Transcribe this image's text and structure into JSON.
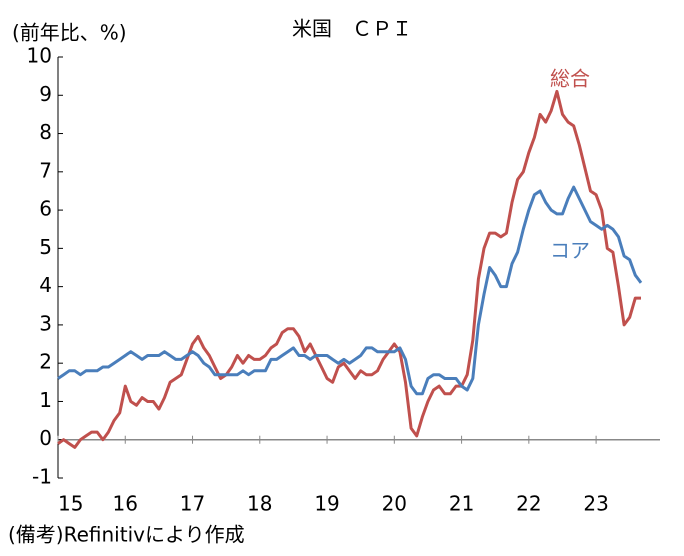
{
  "chart_data": {
    "type": "line",
    "title": "米国　ＣＰＩ",
    "y_label": "(前年比、%)",
    "note": "(備考)Refinitivにより作成",
    "x": [
      15,
      15.083,
      15.167,
      15.25,
      15.333,
      15.417,
      15.5,
      15.583,
      15.667,
      15.75,
      15.833,
      15.917,
      16,
      16.083,
      16.167,
      16.25,
      16.333,
      16.417,
      16.5,
      16.583,
      16.667,
      16.75,
      16.833,
      16.917,
      17,
      17.083,
      17.167,
      17.25,
      17.333,
      17.417,
      17.5,
      17.583,
      17.667,
      17.75,
      17.833,
      17.917,
      18,
      18.083,
      18.167,
      18.25,
      18.333,
      18.417,
      18.5,
      18.583,
      18.667,
      18.75,
      18.833,
      18.917,
      19,
      19.083,
      19.167,
      19.25,
      19.333,
      19.417,
      19.5,
      19.583,
      19.667,
      19.75,
      19.833,
      19.917,
      20,
      20.083,
      20.167,
      20.25,
      20.333,
      20.417,
      20.5,
      20.583,
      20.667,
      20.75,
      20.833,
      20.917,
      21,
      21.083,
      21.167,
      21.25,
      21.333,
      21.417,
      21.5,
      21.583,
      21.667,
      21.75,
      21.833,
      21.917,
      22,
      22.083,
      22.167,
      22.25,
      22.333,
      22.417,
      22.5,
      22.583,
      22.667,
      22.75,
      22.833,
      22.917,
      23,
      23.083,
      23.167,
      23.25,
      23.333,
      23.417,
      23.5,
      23.583,
      23.667
    ],
    "series": [
      {
        "name": "総合",
        "color": "#c0504d",
        "values": [
          -0.1,
          0.0,
          -0.1,
          -0.2,
          0.0,
          0.1,
          0.2,
          0.2,
          0.0,
          0.2,
          0.5,
          0.7,
          1.4,
          1.0,
          0.9,
          1.1,
          1.0,
          1.0,
          0.8,
          1.1,
          1.5,
          1.6,
          1.7,
          2.1,
          2.5,
          2.7,
          2.4,
          2.2,
          1.9,
          1.6,
          1.7,
          1.9,
          2.2,
          2.0,
          2.2,
          2.1,
          2.1,
          2.2,
          2.4,
          2.5,
          2.8,
          2.9,
          2.9,
          2.7,
          2.3,
          2.5,
          2.2,
          1.9,
          1.6,
          1.5,
          1.9,
          2.0,
          1.8,
          1.6,
          1.8,
          1.7,
          1.7,
          1.8,
          2.1,
          2.3,
          2.5,
          2.3,
          1.5,
          0.3,
          0.1,
          0.6,
          1.0,
          1.3,
          1.4,
          1.2,
          1.2,
          1.4,
          1.4,
          1.7,
          2.6,
          4.2,
          5.0,
          5.4,
          5.4,
          5.3,
          5.4,
          6.2,
          6.8,
          7.0,
          7.5,
          7.9,
          8.5,
          8.3,
          8.6,
          9.1,
          8.5,
          8.3,
          8.2,
          7.7,
          7.1,
          6.5,
          6.4,
          6.0,
          5.0,
          4.9,
          4.0,
          3.0,
          3.2,
          3.7,
          3.7
        ]
      },
      {
        "name": "コア",
        "color": "#4a7ebb",
        "values": [
          1.6,
          1.7,
          1.8,
          1.8,
          1.7,
          1.8,
          1.8,
          1.8,
          1.9,
          1.9,
          2.0,
          2.1,
          2.2,
          2.3,
          2.2,
          2.1,
          2.2,
          2.2,
          2.2,
          2.3,
          2.2,
          2.1,
          2.1,
          2.2,
          2.3,
          2.2,
          2.0,
          1.9,
          1.7,
          1.7,
          1.7,
          1.7,
          1.7,
          1.8,
          1.7,
          1.8,
          1.8,
          1.8,
          2.1,
          2.1,
          2.2,
          2.3,
          2.4,
          2.2,
          2.2,
          2.1,
          2.2,
          2.2,
          2.2,
          2.1,
          2.0,
          2.1,
          2.0,
          2.1,
          2.2,
          2.4,
          2.4,
          2.3,
          2.3,
          2.3,
          2.3,
          2.4,
          2.1,
          1.4,
          1.2,
          1.2,
          1.6,
          1.7,
          1.7,
          1.6,
          1.6,
          1.6,
          1.4,
          1.3,
          1.6,
          3.0,
          3.8,
          4.5,
          4.3,
          4.0,
          4.0,
          4.6,
          4.9,
          5.5,
          6.0,
          6.4,
          6.5,
          6.2,
          6.0,
          5.9,
          5.9,
          6.3,
          6.6,
          6.3,
          6.0,
          5.7,
          5.6,
          5.5,
          5.6,
          5.5,
          5.3,
          4.8,
          4.7,
          4.3,
          4.1
        ]
      }
    ],
    "xlim": [
      15,
      23.95
    ],
    "xticks": [
      15,
      16,
      17,
      18,
      19,
      20,
      21,
      22,
      23
    ],
    "ylim": [
      -1,
      10
    ],
    "yticks": [
      -1,
      0,
      1,
      2,
      3,
      4,
      5,
      6,
      7,
      8,
      9,
      10
    ]
  }
}
